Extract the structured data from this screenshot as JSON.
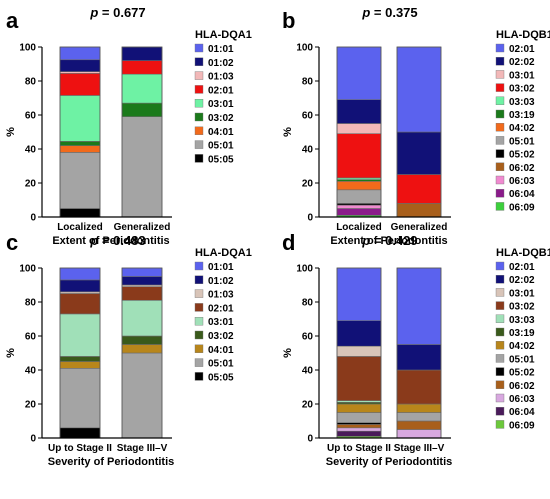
{
  "figure": {
    "panel_order": [
      "a",
      "b",
      "c",
      "d"
    ]
  },
  "chart_data": [
    {
      "panel": "a",
      "type": "bar",
      "stacked": true,
      "title": "p = 0.677",
      "title_prefix": "p",
      "title_value": " = 0.677",
      "xlabel": "Extent of Periodontitis",
      "ylabel": "%",
      "ylim": [
        0,
        100
      ],
      "yticks": [
        "0",
        "20",
        "40",
        "60",
        "80",
        "100"
      ],
      "categories": [
        "Localized",
        "Generalized"
      ],
      "legend_title": "HLA-DQA1",
      "legend_position": "right",
      "grid": false,
      "series": [
        {
          "name": "01:01",
          "color": "#5b62ee",
          "values": [
            7.5,
            0
          ]
        },
        {
          "name": "01:02",
          "color": "#111177",
          "values": [
            7,
            8
          ]
        },
        {
          "name": "01:03",
          "color": "#f2b8b8",
          "values": [
            1,
            0
          ]
        },
        {
          "name": "02:01",
          "color": "#ee1111",
          "values": [
            13,
            8
          ]
        },
        {
          "name": "03:01",
          "color": "#6ef2a4",
          "values": [
            27,
            17
          ]
        },
        {
          "name": "03:02",
          "color": "#1b7a1b",
          "values": [
            2.5,
            8
          ]
        },
        {
          "name": "04:01",
          "color": "#f26a1b",
          "values": [
            4,
            0
          ]
        },
        {
          "name": "05:01",
          "color": "#a4a4a4",
          "values": [
            33,
            59
          ]
        },
        {
          "name": "05:05",
          "color": "#000000",
          "values": [
            5,
            0
          ]
        }
      ]
    },
    {
      "panel": "b",
      "type": "bar",
      "stacked": true,
      "title": "p = 0.375",
      "title_prefix": "p",
      "title_value": " = 0.375",
      "xlabel": "Extent of Periodontitis",
      "ylabel": "%",
      "ylim": [
        0,
        100
      ],
      "yticks": [
        "0",
        "20",
        "40",
        "60",
        "80",
        "100"
      ],
      "categories": [
        "Localized",
        "Generalized"
      ],
      "legend_title": "HLA-DQB1",
      "legend_position": "right",
      "grid": false,
      "series": [
        {
          "name": "02:01",
          "color": "#5b62ee",
          "values": [
            31,
            50
          ]
        },
        {
          "name": "02:02",
          "color": "#111177",
          "values": [
            14,
            25
          ]
        },
        {
          "name": "03:01",
          "color": "#f2b8b8",
          "values": [
            6,
            0
          ]
        },
        {
          "name": "03:02",
          "color": "#ee1111",
          "values": [
            26,
            17
          ]
        },
        {
          "name": "03:03",
          "color": "#6ef2a4",
          "values": [
            1,
            0
          ]
        },
        {
          "name": "03:19",
          "color": "#1b7a1b",
          "values": [
            1,
            0
          ]
        },
        {
          "name": "04:02",
          "color": "#f26a1b",
          "values": [
            5,
            0
          ]
        },
        {
          "name": "05:01",
          "color": "#a4a4a4",
          "values": [
            8,
            0
          ]
        },
        {
          "name": "05:02",
          "color": "#000000",
          "values": [
            1,
            0
          ]
        },
        {
          "name": "06:02",
          "color": "#a85f1b",
          "values": [
            0,
            8
          ]
        },
        {
          "name": "06:03",
          "color": "#f08ad0",
          "values": [
            2,
            0
          ]
        },
        {
          "name": "06:04",
          "color": "#8a1b8a",
          "values": [
            4,
            0
          ]
        },
        {
          "name": "06:09",
          "color": "#3cd03c",
          "values": [
            1,
            0
          ]
        }
      ]
    },
    {
      "panel": "c",
      "type": "bar",
      "stacked": true,
      "title": "p = 0.483",
      "title_prefix": "p",
      "title_value": " = 0.483",
      "xlabel": "Severity of Periodontitis",
      "ylabel": "%",
      "ylim": [
        0,
        100
      ],
      "yticks": [
        "0",
        "20",
        "40",
        "60",
        "80",
        "100"
      ],
      "categories": [
        "Up to Stage II",
        "Stage III–V"
      ],
      "legend_title": "HLA-DQA1",
      "legend_position": "right",
      "grid": false,
      "series": [
        {
          "name": "01:01",
          "color": "#5b62ee",
          "values": [
            7,
            5
          ]
        },
        {
          "name": "01:02",
          "color": "#111177",
          "values": [
            7,
            5
          ]
        },
        {
          "name": "01:03",
          "color": "#d8c4b8",
          "values": [
            1,
            1
          ]
        },
        {
          "name": "02:01",
          "color": "#8a3a1b",
          "values": [
            12,
            8
          ]
        },
        {
          "name": "03:01",
          "color": "#a0e0b8",
          "values": [
            25,
            21
          ]
        },
        {
          "name": "03:02",
          "color": "#3a5a1b",
          "values": [
            3,
            5
          ]
        },
        {
          "name": "04:01",
          "color": "#b8861b",
          "values": [
            4,
            5
          ]
        },
        {
          "name": "05:01",
          "color": "#a4a4a4",
          "values": [
            35,
            50
          ]
        },
        {
          "name": "05:05",
          "color": "#000000",
          "values": [
            6,
            0
          ]
        }
      ]
    },
    {
      "panel": "d",
      "type": "bar",
      "stacked": true,
      "title": "p = 0.429",
      "title_prefix": "p",
      "title_value": " = 0.429",
      "xlabel": "Severity of Periodontitis",
      "ylabel": "%",
      "ylim": [
        0,
        100
      ],
      "yticks": [
        "0",
        "20",
        "40",
        "60",
        "80",
        "100"
      ],
      "categories": [
        "Up to Stage II",
        "Stage III–V"
      ],
      "legend_title": "HLA-DQB1",
      "legend_position": "right",
      "grid": false,
      "series": [
        {
          "name": "02:01",
          "color": "#5b62ee",
          "values": [
            31,
            45
          ]
        },
        {
          "name": "02:02",
          "color": "#111177",
          "values": [
            15,
            15
          ]
        },
        {
          "name": "03:01",
          "color": "#d8c4b8",
          "values": [
            6,
            0
          ]
        },
        {
          "name": "03:02",
          "color": "#8a3a1b",
          "values": [
            26,
            20
          ]
        },
        {
          "name": "03:03",
          "color": "#a0e0b8",
          "values": [
            1,
            0
          ]
        },
        {
          "name": "03:19",
          "color": "#3a5a1b",
          "values": [
            1,
            0
          ]
        },
        {
          "name": "04:02",
          "color": "#b8861b",
          "values": [
            5,
            5
          ]
        },
        {
          "name": "05:01",
          "color": "#a4a4a4",
          "values": [
            6,
            5
          ]
        },
        {
          "name": "05:02",
          "color": "#000000",
          "values": [
            1,
            0
          ]
        },
        {
          "name": "06:02",
          "color": "#a85f1b",
          "values": [
            2,
            5
          ]
        },
        {
          "name": "06:03",
          "color": "#d8a8e0",
          "values": [
            2,
            5
          ]
        },
        {
          "name": "06:04",
          "color": "#4a1b5a",
          "values": [
            3,
            0
          ]
        },
        {
          "name": "06:09",
          "color": "#6cc83c",
          "values": [
            1,
            0
          ]
        }
      ]
    }
  ]
}
